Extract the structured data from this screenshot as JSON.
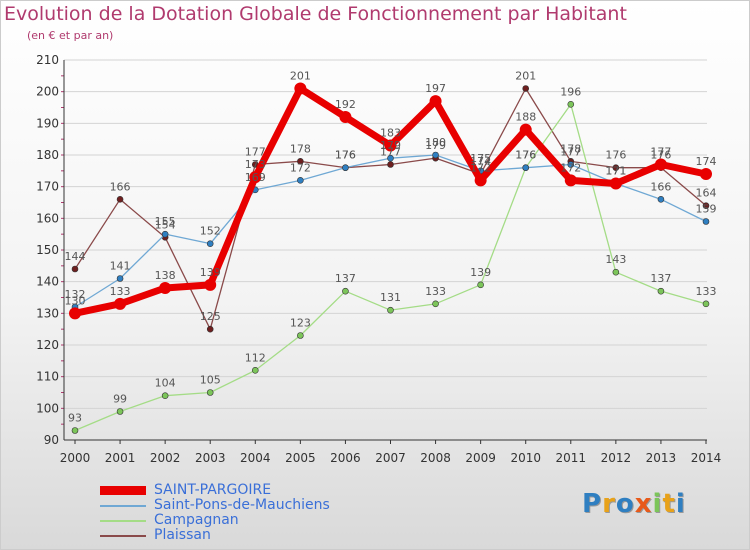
{
  "title": "Evolution de la Dotation Globale de Fonctionnement par Habitant",
  "subtitle": "(en € et par an)",
  "logo": "Proxiti",
  "colors": {
    "title": "#b03a6e",
    "axis": "#333333",
    "grid": "#d4d4d4",
    "tick_marks": "#b03a6e"
  },
  "chart_data": {
    "type": "line",
    "title": "Evolution de la Dotation Globale de Fonctionnement par Habitant",
    "subtitle": "(en € et par an)",
    "xlabel": "",
    "ylabel": "",
    "x": [
      "2000",
      "2001",
      "2002",
      "2003",
      "2004",
      "2005",
      "2006",
      "2007",
      "2008",
      "2009",
      "2010",
      "2011",
      "2012",
      "2013",
      "2014"
    ],
    "ylim": [
      90,
      210
    ],
    "yticks": [
      90,
      100,
      110,
      120,
      130,
      140,
      150,
      160,
      170,
      180,
      190,
      200,
      210
    ],
    "grid": true,
    "legend_position": "bottom-left",
    "series": [
      {
        "name": "SAINT-PARGOIRE",
        "color": "#e80000",
        "marker": "#e80000",
        "label_color": "#555555",
        "width": 7,
        "values": [
          130,
          133,
          138,
          139,
          173,
          201,
          192,
          183,
          197,
          172,
          188,
          172,
          171,
          177,
          174
        ]
      },
      {
        "name": "Saint-Pons-de-Mauchiens",
        "color": "#6fa8d4",
        "marker": "#2f7fc1",
        "label_color": "#555555",
        "width": 1.3,
        "values": [
          132,
          141,
          155,
          152,
          169,
          172,
          176,
          179,
          180,
          175,
          176,
          177,
          171,
          166,
          159
        ]
      },
      {
        "name": "Campagnan",
        "color": "#a4dc86",
        "marker": "#7cc55a",
        "label_color": "#555555",
        "width": 1.3,
        "values": [
          93,
          99,
          104,
          105,
          112,
          123,
          137,
          131,
          133,
          139,
          176,
          196,
          143,
          137,
          133
        ]
      },
      {
        "name": "Plaissan",
        "color": "#8a4a4a",
        "marker": "#6e1f1f",
        "label_color": "#555555",
        "width": 1.3,
        "values": [
          144,
          166,
          154,
          125,
          177,
          178,
          176,
          177,
          179,
          174,
          201,
          178,
          176,
          176,
          164
        ]
      }
    ]
  }
}
